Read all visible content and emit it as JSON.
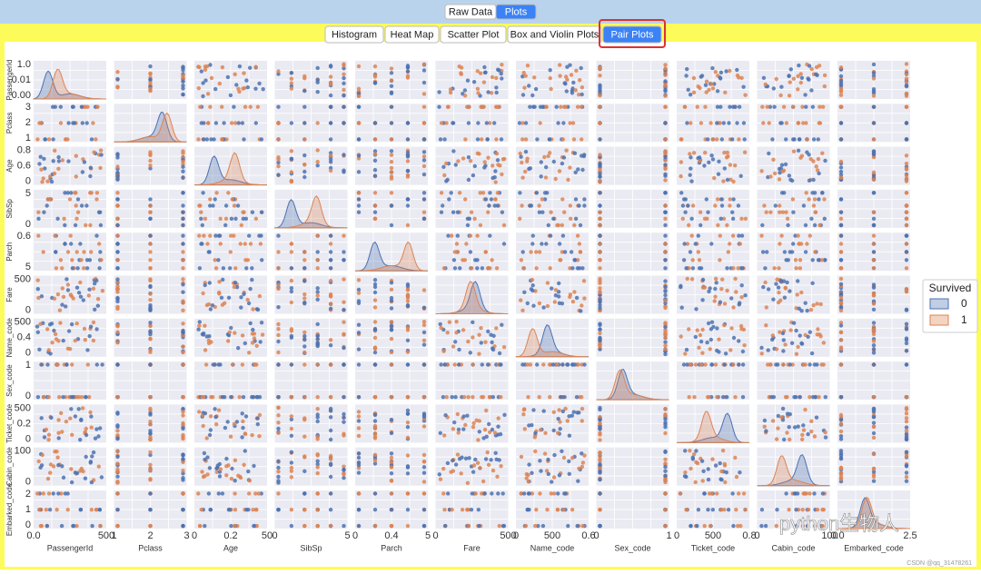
{
  "top_tabs": [
    "Raw Data",
    "Plots"
  ],
  "top_selected": 1,
  "tabs": [
    "Histogram",
    "Heat Map",
    "Scatter Plot",
    "Box and Violin Plots",
    "Pair Plots"
  ],
  "selected_tab": 4,
  "pair_plot": {
    "variables": [
      "PassengerId",
      "Pclass",
      "Age",
      "SibSp",
      "Parch",
      "Fare",
      "Name_code",
      "Sex_code",
      "Ticket_code",
      "Cabin_code",
      "Embarked_code"
    ],
    "x_tick_labels": [
      [
        "0.0",
        "500"
      ],
      [
        "1",
        "2",
        "3"
      ],
      [
        "0",
        "0.2",
        "50"
      ],
      [
        "0",
        "5"
      ],
      [
        "0",
        "0.4",
        "5"
      ],
      [
        "0",
        "500"
      ],
      [
        "0",
        "500",
        "0.6"
      ],
      [
        "0",
        "1"
      ],
      [
        "0",
        "500",
        "0.8"
      ],
      [
        "0",
        "100"
      ],
      [
        "0.0",
        "2.5"
      ]
    ],
    "y_tick_labels": [
      [
        "1.0",
        "0.01",
        "0.00"
      ],
      [
        "3",
        "2",
        "1"
      ],
      [
        "0.8",
        "0.6",
        "0"
      ],
      [
        "5",
        "0"
      ],
      [
        "0.6",
        "5"
      ],
      [
        "500",
        "0"
      ],
      [
        "500",
        "0.4",
        "0"
      ],
      [
        "1",
        "0"
      ],
      [
        "500",
        "0.2",
        "0"
      ],
      [
        "100",
        "0"
      ],
      [
        "2",
        "1",
        "0"
      ]
    ],
    "legend": {
      "title": "Survived",
      "entries": [
        {
          "label": "0",
          "color": "#4c72b0"
        },
        {
          "label": "1",
          "color": "#dd8452"
        }
      ]
    }
  },
  "watermark": "python生物人",
  "credit": "CSDN @qq_31478261"
}
